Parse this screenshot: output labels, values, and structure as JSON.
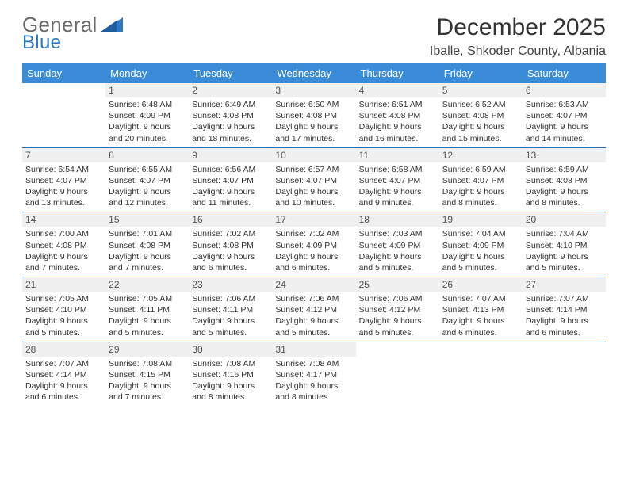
{
  "logo": {
    "word1": "General",
    "word2": "Blue"
  },
  "colors": {
    "header_bg": "#3a8bd8",
    "row_border": "#2f6fb0",
    "daynum_bg": "#f0f0f0",
    "text": "#333333",
    "logo_gray": "#6a6a6a",
    "logo_blue": "#2f78c2"
  },
  "title": "December 2025",
  "location": "Iballe, Shkoder County, Albania",
  "weekdays": [
    "Sunday",
    "Monday",
    "Tuesday",
    "Wednesday",
    "Thursday",
    "Friday",
    "Saturday"
  ],
  "first_day_index": 1,
  "days": [
    {
      "n": 1,
      "sunrise": "6:48 AM",
      "sunset": "4:09 PM",
      "daylight": "9 hours and 20 minutes."
    },
    {
      "n": 2,
      "sunrise": "6:49 AM",
      "sunset": "4:08 PM",
      "daylight": "9 hours and 18 minutes."
    },
    {
      "n": 3,
      "sunrise": "6:50 AM",
      "sunset": "4:08 PM",
      "daylight": "9 hours and 17 minutes."
    },
    {
      "n": 4,
      "sunrise": "6:51 AM",
      "sunset": "4:08 PM",
      "daylight": "9 hours and 16 minutes."
    },
    {
      "n": 5,
      "sunrise": "6:52 AM",
      "sunset": "4:08 PM",
      "daylight": "9 hours and 15 minutes."
    },
    {
      "n": 6,
      "sunrise": "6:53 AM",
      "sunset": "4:07 PM",
      "daylight": "9 hours and 14 minutes."
    },
    {
      "n": 7,
      "sunrise": "6:54 AM",
      "sunset": "4:07 PM",
      "daylight": "9 hours and 13 minutes."
    },
    {
      "n": 8,
      "sunrise": "6:55 AM",
      "sunset": "4:07 PM",
      "daylight": "9 hours and 12 minutes."
    },
    {
      "n": 9,
      "sunrise": "6:56 AM",
      "sunset": "4:07 PM",
      "daylight": "9 hours and 11 minutes."
    },
    {
      "n": 10,
      "sunrise": "6:57 AM",
      "sunset": "4:07 PM",
      "daylight": "9 hours and 10 minutes."
    },
    {
      "n": 11,
      "sunrise": "6:58 AM",
      "sunset": "4:07 PM",
      "daylight": "9 hours and 9 minutes."
    },
    {
      "n": 12,
      "sunrise": "6:59 AM",
      "sunset": "4:07 PM",
      "daylight": "9 hours and 8 minutes."
    },
    {
      "n": 13,
      "sunrise": "6:59 AM",
      "sunset": "4:08 PM",
      "daylight": "9 hours and 8 minutes."
    },
    {
      "n": 14,
      "sunrise": "7:00 AM",
      "sunset": "4:08 PM",
      "daylight": "9 hours and 7 minutes."
    },
    {
      "n": 15,
      "sunrise": "7:01 AM",
      "sunset": "4:08 PM",
      "daylight": "9 hours and 7 minutes."
    },
    {
      "n": 16,
      "sunrise": "7:02 AM",
      "sunset": "4:08 PM",
      "daylight": "9 hours and 6 minutes."
    },
    {
      "n": 17,
      "sunrise": "7:02 AM",
      "sunset": "4:09 PM",
      "daylight": "9 hours and 6 minutes."
    },
    {
      "n": 18,
      "sunrise": "7:03 AM",
      "sunset": "4:09 PM",
      "daylight": "9 hours and 5 minutes."
    },
    {
      "n": 19,
      "sunrise": "7:04 AM",
      "sunset": "4:09 PM",
      "daylight": "9 hours and 5 minutes."
    },
    {
      "n": 20,
      "sunrise": "7:04 AM",
      "sunset": "4:10 PM",
      "daylight": "9 hours and 5 minutes."
    },
    {
      "n": 21,
      "sunrise": "7:05 AM",
      "sunset": "4:10 PM",
      "daylight": "9 hours and 5 minutes."
    },
    {
      "n": 22,
      "sunrise": "7:05 AM",
      "sunset": "4:11 PM",
      "daylight": "9 hours and 5 minutes."
    },
    {
      "n": 23,
      "sunrise": "7:06 AM",
      "sunset": "4:11 PM",
      "daylight": "9 hours and 5 minutes."
    },
    {
      "n": 24,
      "sunrise": "7:06 AM",
      "sunset": "4:12 PM",
      "daylight": "9 hours and 5 minutes."
    },
    {
      "n": 25,
      "sunrise": "7:06 AM",
      "sunset": "4:12 PM",
      "daylight": "9 hours and 5 minutes."
    },
    {
      "n": 26,
      "sunrise": "7:07 AM",
      "sunset": "4:13 PM",
      "daylight": "9 hours and 6 minutes."
    },
    {
      "n": 27,
      "sunrise": "7:07 AM",
      "sunset": "4:14 PM",
      "daylight": "9 hours and 6 minutes."
    },
    {
      "n": 28,
      "sunrise": "7:07 AM",
      "sunset": "4:14 PM",
      "daylight": "9 hours and 6 minutes."
    },
    {
      "n": 29,
      "sunrise": "7:08 AM",
      "sunset": "4:15 PM",
      "daylight": "9 hours and 7 minutes."
    },
    {
      "n": 30,
      "sunrise": "7:08 AM",
      "sunset": "4:16 PM",
      "daylight": "9 hours and 8 minutes."
    },
    {
      "n": 31,
      "sunrise": "7:08 AM",
      "sunset": "4:17 PM",
      "daylight": "9 hours and 8 minutes."
    }
  ],
  "labels": {
    "sunrise": "Sunrise: ",
    "sunset": "Sunset: ",
    "daylight": "Daylight: "
  }
}
